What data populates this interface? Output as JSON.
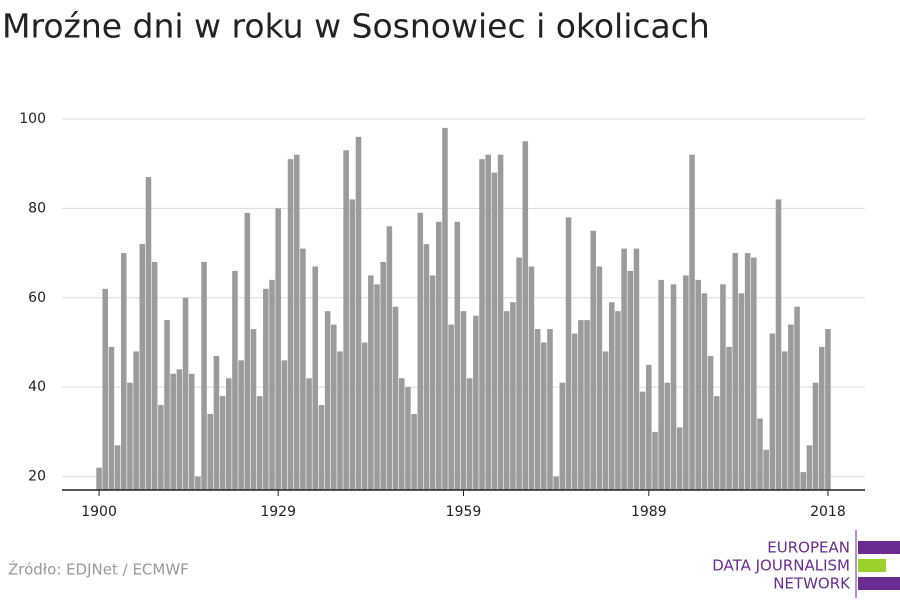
{
  "chart_data": {
    "type": "bar",
    "title": "Mroźne dni w roku w Sosnowiec i okolicach",
    "x": [
      1900,
      1901,
      1902,
      1903,
      1904,
      1905,
      1906,
      1907,
      1908,
      1909,
      1910,
      1911,
      1912,
      1913,
      1914,
      1915,
      1916,
      1917,
      1918,
      1919,
      1920,
      1921,
      1922,
      1923,
      1924,
      1925,
      1926,
      1927,
      1928,
      1929,
      1930,
      1931,
      1932,
      1933,
      1934,
      1935,
      1936,
      1937,
      1938,
      1939,
      1940,
      1941,
      1942,
      1943,
      1944,
      1945,
      1946,
      1947,
      1948,
      1949,
      1950,
      1951,
      1952,
      1953,
      1954,
      1955,
      1956,
      1957,
      1958,
      1959,
      1960,
      1961,
      1962,
      1963,
      1964,
      1965,
      1966,
      1967,
      1968,
      1969,
      1970,
      1971,
      1972,
      1973,
      1974,
      1975,
      1976,
      1977,
      1978,
      1979,
      1980,
      1981,
      1982,
      1983,
      1984,
      1985,
      1986,
      1987,
      1988,
      1989,
      1990,
      1991,
      1992,
      1993,
      1994,
      1995,
      1996,
      1997,
      1998,
      1999,
      2000,
      2001,
      2002,
      2003,
      2004,
      2005,
      2006,
      2007,
      2008,
      2009,
      2010,
      2011,
      2012,
      2013,
      2014,
      2015,
      2016,
      2017,
      2018
    ],
    "values": [
      22,
      62,
      49,
      27,
      70,
      41,
      48,
      72,
      87,
      68,
      36,
      55,
      43,
      44,
      60,
      43,
      20,
      68,
      34,
      47,
      38,
      42,
      66,
      46,
      79,
      53,
      38,
      62,
      64,
      80,
      46,
      91,
      92,
      71,
      42,
      67,
      36,
      57,
      54,
      48,
      93,
      82,
      96,
      50,
      65,
      63,
      68,
      76,
      58,
      42,
      40,
      34,
      79,
      72,
      65,
      77,
      98,
      54,
      77,
      57,
      42,
      56,
      91,
      92,
      88,
      92,
      57,
      59,
      69,
      95,
      67,
      53,
      50,
      53,
      20,
      41,
      78,
      52,
      55,
      55,
      75,
      67,
      48,
      59,
      57,
      71,
      66,
      71,
      39,
      45,
      30,
      64,
      41,
      63,
      31,
      65,
      92,
      64,
      61,
      47,
      38,
      63,
      49,
      70,
      61,
      70,
      69,
      33,
      26,
      52,
      82,
      48,
      54,
      58,
      21,
      27,
      41,
      49,
      53
    ],
    "color": "#9b9b9b",
    "xlim": [
      1894,
      2024
    ],
    "xticks": [
      1900,
      1929,
      1959,
      1989,
      2018
    ],
    "ylim": [
      17,
      102
    ],
    "yticks": [
      20,
      40,
      60,
      80,
      100
    ],
    "grid": true
  },
  "footer": {
    "source": "Źródło: EDJNet / ECMWF",
    "logo": [
      "EUROPEAN",
      "DATA JOURNALISM",
      "NETWORK"
    ]
  }
}
